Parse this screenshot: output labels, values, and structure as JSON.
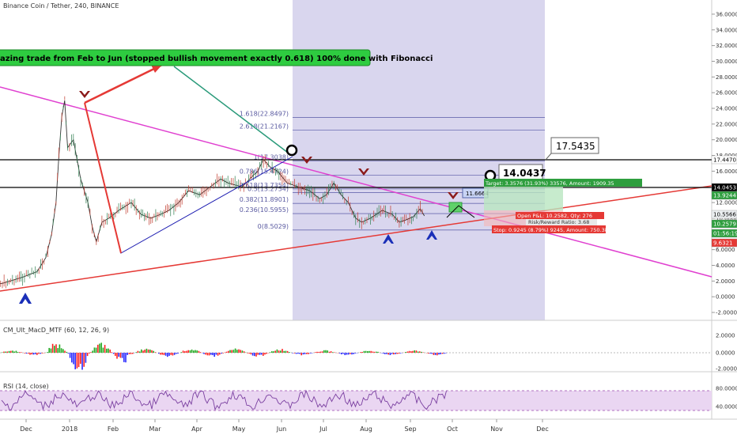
{
  "header": {
    "symbol": "Binance Coin / Tether, 240, BINANCE",
    "macd_label": "CM_Ult_MacD_MTF (60, 12, 26, 9)",
    "rsi_label": "RSI (14, close)"
  },
  "banner": "azing trade from Feb to Jun (stopped bullish movement  exactly 0.618) 100% done with Fibonacci",
  "callouts": {
    "price_box_1": "17.5435",
    "price_box_2": "14.0437",
    "small_label": "11.6664"
  },
  "trade": {
    "target": "Target: 3.3576 (31.93%) 33576, Amount: 1909.35",
    "open": "Open P&L: 10.2582, Qty: 276",
    "ratio": "Risk/Reward Ratio: 3.68",
    "stop": "Stop: 0.9245 (8.79%) 9245, Amount: 750.38"
  },
  "colors": {
    "fib_zone": "#d9d6ee",
    "pink_line": "#e040d0",
    "red_line": "#e53935",
    "blue_line": "#1a1ab0",
    "arrow_red": "#8b1a1a",
    "arrow_blue": "#1a2fb8",
    "banner_bg": "#2ecc40"
  },
  "chart_data": [
    {
      "type": "line",
      "title": "Binance Coin / Tether, 240, BINANCE",
      "x_ticks": [
        "Dec",
        "2018",
        "Feb",
        "Mar",
        "Apr",
        "May",
        "Jun",
        "Jul",
        "Aug",
        "Sep",
        "Oct",
        "Nov",
        "Dec"
      ],
      "y_ticks": [
        36,
        34,
        32,
        30,
        28,
        26,
        24,
        22,
        20,
        18,
        16,
        14,
        12,
        10,
        8,
        6,
        4,
        2,
        0,
        -2
      ],
      "ylim": [
        -2.5,
        37
      ],
      "series_points": [
        [
          "Nov 15",
          1.5
        ],
        [
          "Dec 1",
          1.7
        ],
        [
          "Dec 15",
          2.5
        ],
        [
          "Dec 25",
          3.2
        ],
        [
          "Jan 1",
          5
        ],
        [
          "Jan 5",
          8
        ],
        [
          "Jan 8",
          12
        ],
        [
          "Jan 10",
          18
        ],
        [
          "Jan 12",
          23
        ],
        [
          "Jan 14",
          25
        ],
        [
          "Jan 16",
          19
        ],
        [
          "Jan 20",
          20
        ],
        [
          "Jan 25",
          15
        ],
        [
          "Jan 30",
          12
        ],
        [
          "Feb 3",
          9
        ],
        [
          "Feb 6",
          7
        ],
        [
          "Feb 10",
          9.5
        ],
        [
          "Feb 15",
          10
        ],
        [
          "Feb 22",
          11
        ],
        [
          "Mar 1",
          12
        ],
        [
          "Mar 8",
          10.5
        ],
        [
          "Mar 15",
          10
        ],
        [
          "Mar 22",
          10.5
        ],
        [
          "Mar 28",
          11
        ],
        [
          "Apr 5",
          12
        ],
        [
          "Apr 12",
          13.5
        ],
        [
          "Apr 20",
          13
        ],
        [
          "Apr 26",
          13.8
        ],
        [
          "May 5",
          15
        ],
        [
          "May 10",
          14.5
        ],
        [
          "May 20",
          14
        ],
        [
          "May 28",
          15.5
        ],
        [
          "Jun 1",
          16
        ],
        [
          "Jun 5",
          17.5
        ],
        [
          "Jun 10",
          16.5
        ],
        [
          "Jun 15",
          16
        ],
        [
          "Jun 22",
          14.5
        ],
        [
          "Jun 30",
          14
        ],
        [
          "Jul 8",
          13.5
        ],
        [
          "Jul 15",
          12.5
        ],
        [
          "Jul 20",
          13
        ],
        [
          "Jul 25",
          14.5
        ],
        [
          "Jul 30",
          13
        ],
        [
          "Aug 5",
          12
        ],
        [
          "Aug 10",
          10
        ],
        [
          "Aug 14",
          9.5
        ],
        [
          "Aug 20",
          10
        ],
        [
          "Aug 28",
          11
        ],
        [
          "Sep 5",
          10.5
        ],
        [
          "Sep 10",
          9.5
        ],
        [
          "Sep 15",
          9.8
        ],
        [
          "Sep 20",
          10.2
        ],
        [
          "Sep 25",
          11.2
        ],
        [
          "Sep 28",
          10.3
        ]
      ],
      "fibonacci": [
        {
          "level": "2.618",
          "price": 21.2167
        },
        {
          "level": "1.618",
          "price": 22.8497
        },
        {
          "level": "1",
          "price": 17.3038
        },
        {
          "level": "0.786",
          "price": 15.4724
        },
        {
          "level": "0.618",
          "price": 13.7354
        },
        {
          "level": "0.5",
          "price": 13.2754
        },
        {
          "level": "0.382",
          "price": 11.8901
        },
        {
          "level": "0.236",
          "price": 10.5955
        },
        {
          "level": "0",
          "price": 8.5029
        }
      ],
      "price_axis_badges": [
        {
          "value": "17.4470",
          "color": "#ffffff",
          "text_color": "#000000"
        },
        {
          "value": "14.0453",
          "color": "#000000",
          "text_color": "#ffffff"
        },
        {
          "value": "13.9244",
          "color": "#2e9e3e",
          "text_color": "#ffffff"
        },
        {
          "value": "10.5566",
          "color": "#eceff1",
          "text_color": "#000000"
        },
        {
          "value": "10.2579",
          "color": "#2e9e3e",
          "text_color": "#ffffff"
        },
        {
          "value": "01:56:19",
          "color": "#2e9e3e",
          "text_color": "#ffffff"
        },
        {
          "value": "9.6321",
          "color": "#e53935",
          "text_color": "#ffffff"
        }
      ]
    },
    {
      "type": "bar",
      "title": "CM_Ult_MacD_MTF (60, 12, 26, 9)",
      "y_ticks": [
        "2.0000",
        "0.0000",
        "-2.0000"
      ]
    },
    {
      "type": "line",
      "title": "RSI (14, close)",
      "y_ticks": [
        "80.0000",
        "40.0000"
      ]
    }
  ]
}
